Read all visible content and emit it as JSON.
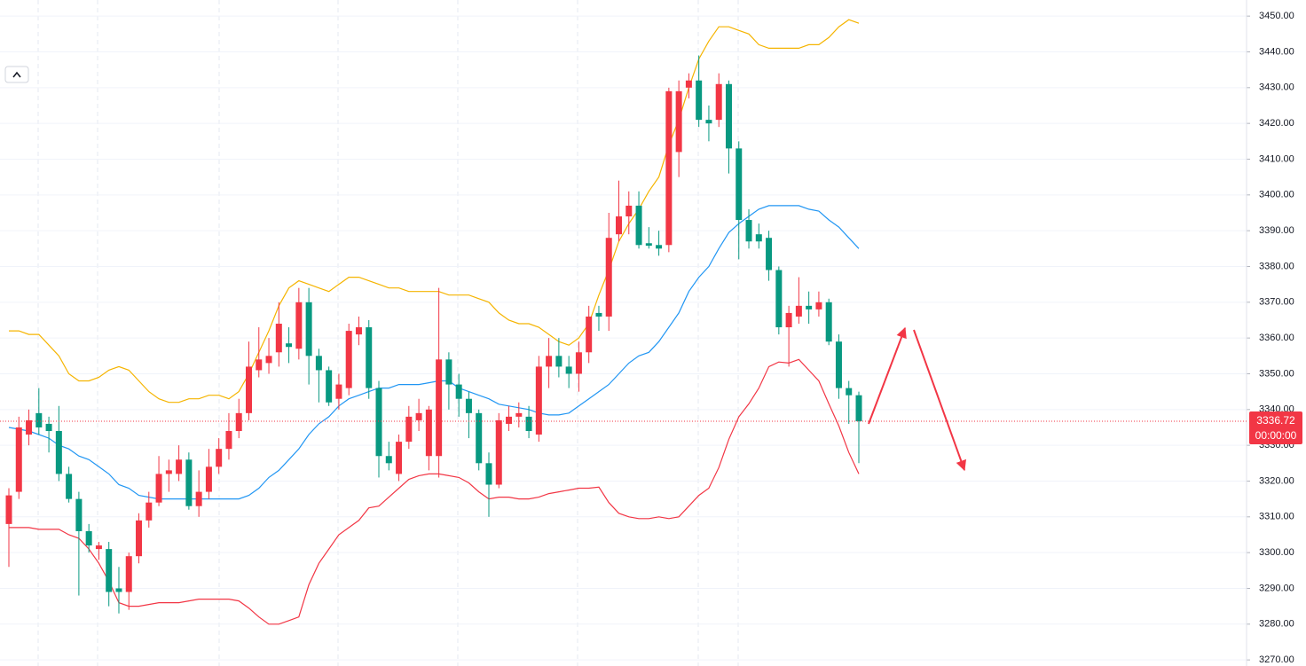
{
  "chart_data": {
    "type": "candlestick",
    "open": [
      3308,
      3317,
      3333,
      3339,
      3336,
      3334,
      3322,
      3315,
      3306,
      3301,
      3301,
      3290,
      3289,
      3299,
      3309,
      3314,
      3322,
      3322,
      3326,
      3313,
      3317,
      3324,
      3329,
      3334,
      3339,
      3351,
      3353,
      3356,
      3358.5,
      3357,
      3370,
      3355,
      3351,
      3343,
      3346,
      3361,
      3363,
      3346,
      3327,
      3322,
      3331,
      3337,
      3327,
      3327,
      3354,
      3347,
      3343,
      3339,
      3325,
      3319,
      3336,
      3338,
      3338,
      3333,
      3352,
      3355,
      3352,
      3350,
      3356,
      3367,
      3366,
      3389,
      3394,
      3397,
      3386.5,
      3386,
      3386,
      3412,
      3430,
      3432,
      3421,
      3421,
      3431,
      3413,
      3393,
      3389,
      3388,
      3379,
      3363,
      3366,
      3369,
      3368,
      3370,
      3359,
      3346,
      3344
    ],
    "high": [
      3318,
      3338,
      3340,
      3346,
      3338,
      3341,
      3324,
      3317,
      3308,
      3303,
      3303,
      3296,
      3300,
      3311,
      3317,
      3327,
      3326,
      3330,
      3328,
      3323,
      3329,
      3332,
      3339,
      3343,
      3359,
      3363,
      3360,
      3370,
      3363,
      3374,
      3374,
      3357,
      3352,
      3350,
      3364,
      3366,
      3365,
      3348,
      3331,
      3333,
      3341,
      3343,
      3341,
      3374,
      3356,
      3350,
      3345,
      3340,
      3328,
      3339,
      3341,
      3342,
      3341,
      3355,
      3360,
      3360,
      3355,
      3359,
      3369,
      3369,
      3395,
      3404,
      3401,
      3401,
      3391,
      3390,
      3430,
      3432,
      3434,
      3439,
      3425,
      3434,
      3432,
      3415,
      3396,
      3392,
      3390,
      3380,
      3369,
      3377,
      3373,
      3373,
      3371,
      3361,
      3348,
      3345
    ],
    "low": [
      3296,
      3315,
      3330,
      3333,
      3328,
      3320,
      3314,
      3288,
      3300,
      3298,
      3285,
      3283,
      3284,
      3297,
      3307,
      3313,
      3317,
      3320,
      3312,
      3310,
      3315,
      3322,
      3326,
      3332,
      3337,
      3349,
      3350,
      3352,
      3353,
      3354,
      3347,
      3342,
      3341,
      3340,
      3344,
      3358,
      3343,
      3321,
      3323,
      3320,
      3329,
      3334,
      3323,
      3321,
      3340,
      3338,
      3332,
      3323,
      3310,
      3318,
      3334,
      3335,
      3332,
      3331,
      3346,
      3349,
      3346,
      3345,
      3353,
      3362,
      3362,
      3387,
      3389,
      3385,
      3385,
      3383,
      3384,
      3405,
      3427,
      3419,
      3415,
      3419,
      3406,
      3382,
      3385,
      3385,
      3376,
      3361,
      3352,
      3364,
      3364,
      3366,
      3358,
      3343,
      3336,
      3325
    ],
    "close": [
      3316,
      3335,
      3337,
      3335,
      3334,
      3322,
      3315,
      3306,
      3302,
      3302,
      3289,
      3289,
      3299,
      3309,
      3314,
      3322,
      3323,
      3326,
      3313,
      3317,
      3324,
      3329,
      3334,
      3339,
      3352,
      3354,
      3355,
      3364,
      3357.5,
      3370,
      3355,
      3351,
      3342,
      3347,
      3362,
      3363,
      3346,
      3327,
      3325,
      3331,
      3338,
      3339,
      3340,
      3354,
      3347,
      3343,
      3339,
      3325,
      3319,
      3337,
      3338,
      3339,
      3334,
      3352,
      3355,
      3352,
      3350,
      3356,
      3366,
      3366,
      3388,
      3394,
      3397,
      3386,
      3385.8,
      3385,
      3429,
      3429,
      3432,
      3421,
      3420,
      3431,
      3413,
      3393,
      3387,
      3387,
      3379,
      3363,
      3367,
      3369,
      3368,
      3370,
      3359,
      3346,
      3344,
      3336.72
    ],
    "up_color": "#f23645",
    "down_color": "#089981",
    "bands": [
      {
        "color": "#f5b400",
        "values": [
          3362,
          3362,
          3361,
          3361,
          3358,
          3355,
          3350,
          3348,
          3348,
          3349,
          3351,
          3352,
          3351,
          3348,
          3345,
          3343,
          3342,
          3342,
          3343,
          3343,
          3344,
          3344,
          3343,
          3345,
          3350,
          3356,
          3362,
          3369,
          3374,
          3376,
          3375,
          3374,
          3373,
          3375,
          3377,
          3377,
          3376,
          3375,
          3374,
          3374,
          3373,
          3373,
          3373,
          3373,
          3372,
          3372,
          3372,
          3371,
          3370,
          3367,
          3365,
          3364,
          3364,
          3363,
          3361,
          3359,
          3358,
          3360,
          3364,
          3372,
          3379,
          3387,
          3392,
          3396,
          3401,
          3405,
          3414,
          3421,
          3430,
          3438,
          3443,
          3447,
          3447,
          3446,
          3445,
          3442,
          3441,
          3441,
          3441,
          3441,
          3442,
          3442,
          3444,
          3447,
          3449,
          3448
        ]
      },
      {
        "color": "#2196f3",
        "values": [
          3335,
          3334.5,
          3334,
          3333,
          3332,
          3330,
          3329,
          3327,
          3326,
          3324,
          3322,
          3319,
          3318,
          3316,
          3315.5,
          3315,
          3315,
          3315,
          3315,
          3315,
          3315,
          3315,
          3315,
          3315,
          3316,
          3318,
          3321,
          3323,
          3326,
          3329,
          3333,
          3336,
          3338,
          3341,
          3343,
          3344,
          3345,
          3346,
          3346,
          3347,
          3347,
          3347,
          3347.5,
          3348,
          3348,
          3346,
          3345,
          3344,
          3343,
          3341.5,
          3341,
          3340.5,
          3340,
          3339,
          3338.5,
          3338.5,
          3339,
          3341,
          3343,
          3345,
          3347,
          3350,
          3353,
          3355,
          3356,
          3359,
          3363,
          3367,
          3373,
          3377,
          3380,
          3385,
          3389.5,
          3392,
          3394,
          3396,
          3397,
          3397,
          3397,
          3397,
          3396,
          3395.5,
          3393,
          3391,
          3388,
          3385
        ]
      },
      {
        "color": "#f23645",
        "values": [
          3307,
          3307,
          3307,
          3306.5,
          3306.5,
          3306.5,
          3305,
          3304,
          3301,
          3297,
          3292,
          3286,
          3285,
          3285,
          3285.5,
          3286,
          3286,
          3286,
          3286.5,
          3287,
          3287,
          3287,
          3287,
          3286.5,
          3284.5,
          3282,
          3280,
          3280,
          3281,
          3282,
          3291,
          3297,
          3301,
          3305,
          3307,
          3309,
          3312.5,
          3313,
          3315.5,
          3318,
          3320.5,
          3321.5,
          3322,
          3322,
          3321.5,
          3321,
          3319.5,
          3317,
          3315,
          3315.5,
          3315.5,
          3315,
          3315,
          3315.5,
          3316.5,
          3317,
          3317.5,
          3318,
          3318,
          3318.3,
          3314,
          3311,
          3310,
          3309.5,
          3309.5,
          3310,
          3309.5,
          3310,
          3313,
          3316,
          3318,
          3323.8,
          3331.7,
          3338,
          3341.6,
          3346,
          3352,
          3353.3,
          3353,
          3354,
          3351,
          3348,
          3341.6,
          3335.4,
          3328,
          3322
        ]
      }
    ],
    "ylim": [
      3268.3,
      3454.5
    ],
    "yticks": [
      {
        "value": 3270,
        "label": "3270.00"
      },
      {
        "value": 3280,
        "label": "3280.00"
      },
      {
        "value": 3290,
        "label": "3290.00"
      },
      {
        "value": 3300,
        "label": "3300.00"
      },
      {
        "value": 3310,
        "label": "3310.00"
      },
      {
        "value": 3320,
        "label": "3320.00"
      },
      {
        "value": 3330,
        "label": "3330.00"
      },
      {
        "value": 3340,
        "label": "3340.00"
      },
      {
        "value": 3350,
        "label": "3350.00"
      },
      {
        "value": 3360,
        "label": "3360.00"
      },
      {
        "value": 3370,
        "label": "3370.00"
      },
      {
        "value": 3380,
        "label": "3380.00"
      },
      {
        "value": 3390,
        "label": "3390.00"
      },
      {
        "value": 3400,
        "label": "3400.00"
      },
      {
        "value": 3410,
        "label": "3410.00"
      },
      {
        "value": 3420,
        "label": "3420.00"
      },
      {
        "value": 3430,
        "label": "3430.00"
      },
      {
        "value": 3440,
        "label": "3440.00"
      },
      {
        "value": 3450,
        "label": "3450.00"
      }
    ],
    "grid": true,
    "last_price": 3336.72,
    "countdown": "00:00:00"
  }
}
